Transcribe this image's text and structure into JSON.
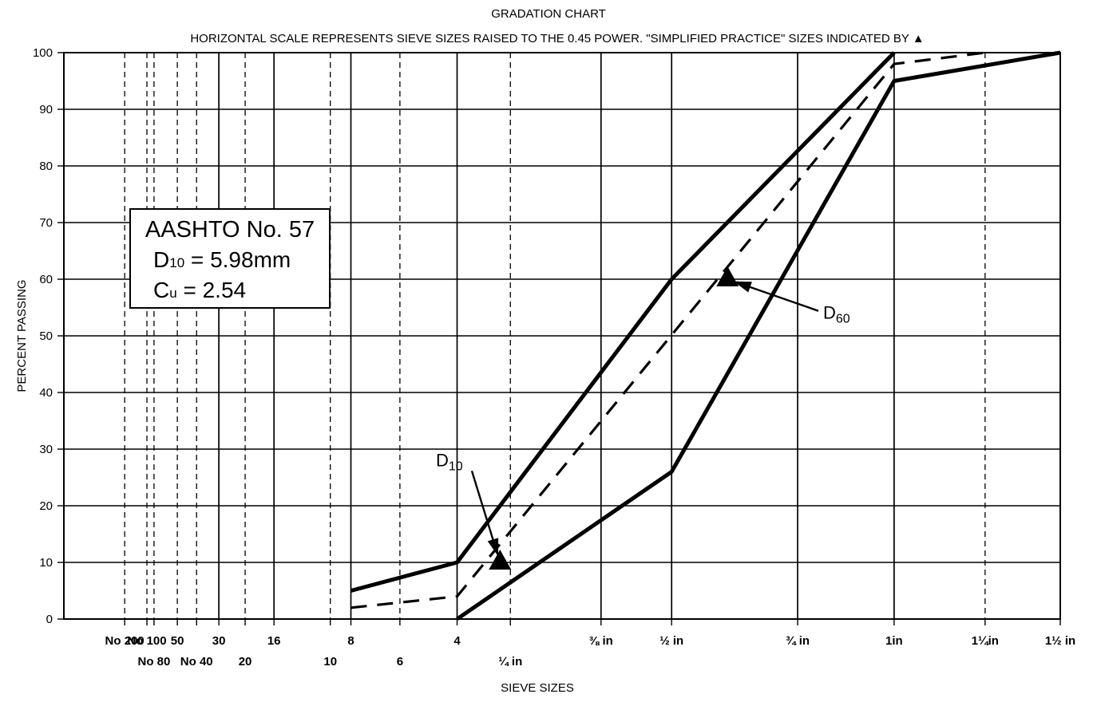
{
  "chart_data": {
    "type": "line",
    "title": "GRADATION CHART",
    "subtitle": "HORIZONTAL SCALE REPRESENTS SIEVE SIZES RAISED TO THE 0.45 POWER. \"SIMPLIFIED PRACTICE\" SIZES INDICATED BY ▲",
    "xlabel": "SIEVE SIZES",
    "ylabel": "PERCENT PASSING",
    "x_scale": "sieve opening (mm) raised to the 0.45 power",
    "ylim": [
      0,
      100
    ],
    "y_ticks": [
      0,
      10,
      20,
      30,
      40,
      50,
      60,
      70,
      80,
      90,
      100
    ],
    "grid": true,
    "sieves": [
      {
        "label": "No 200",
        "size_mm": 0.075,
        "row": 1,
        "line": "dashed"
      },
      {
        "label": "No 100",
        "size_mm": 0.15,
        "row": 1,
        "line": "dashed"
      },
      {
        "label": "No 80",
        "size_mm": 0.18,
        "row": 2,
        "line": "dashed"
      },
      {
        "label": "50",
        "size_mm": 0.3,
        "row": 1,
        "line": "dashed"
      },
      {
        "label": "No 40",
        "size_mm": 0.425,
        "row": 2,
        "line": "dashed"
      },
      {
        "label": "30",
        "size_mm": 0.6,
        "row": 1,
        "line": "solid"
      },
      {
        "label": "20",
        "size_mm": 0.85,
        "row": 2,
        "line": "dashed"
      },
      {
        "label": "16",
        "size_mm": 1.18,
        "row": 1,
        "line": "solid"
      },
      {
        "label": "10",
        "size_mm": 2.0,
        "row": 2,
        "line": "dashed"
      },
      {
        "label": "8",
        "size_mm": 2.36,
        "row": 1,
        "line": "solid"
      },
      {
        "label": "6",
        "size_mm": 3.35,
        "row": 2,
        "line": "dashed"
      },
      {
        "label": "4",
        "size_mm": 4.75,
        "row": 1,
        "line": "solid"
      },
      {
        "label": "¼ in",
        "size_mm": 6.3,
        "row": 2,
        "line": "dashed"
      },
      {
        "label": "⅜ in",
        "size_mm": 9.5,
        "row": 1,
        "line": "solid"
      },
      {
        "label": "½ in",
        "size_mm": 12.5,
        "row": 1,
        "line": "solid"
      },
      {
        "label": "¾ in",
        "size_mm": 19.0,
        "row": 1,
        "line": "solid"
      },
      {
        "label": "1in",
        "size_mm": 25.0,
        "row": 1,
        "line": "solid"
      },
      {
        "label": "1¼in",
        "size_mm": 31.5,
        "row": 1,
        "line": "dashed"
      },
      {
        "label": "1½ in",
        "size_mm": 37.5,
        "row": 1,
        "line": "solid"
      }
    ],
    "series": [
      {
        "style": "solid",
        "points": [
          [
            2.36,
            5
          ],
          [
            4.75,
            10
          ],
          [
            12.5,
            60
          ],
          [
            25.0,
            100
          ]
        ]
      },
      {
        "style": "solid",
        "points": [
          [
            4.75,
            0
          ],
          [
            12.5,
            26
          ],
          [
            25.0,
            95
          ],
          [
            37.5,
            100
          ]
        ]
      },
      {
        "style": "dashed",
        "points": [
          [
            2.36,
            2
          ],
          [
            4.75,
            4
          ],
          [
            25.0,
            98
          ],
          [
            31.5,
            100
          ]
        ]
      }
    ],
    "markers": [
      {
        "type": "triangle",
        "x": 5.98,
        "y": 10
      },
      {
        "type": "triangle",
        "x": 15.2,
        "y": 60
      }
    ],
    "annotations": [
      {
        "label_main": "D",
        "label_sub": "10",
        "x": 4.2,
        "y": 27,
        "arrow_to": [
          5.98,
          10
        ]
      },
      {
        "label_main": "D",
        "label_sub": "60",
        "x": 20.5,
        "y": 53,
        "arrow_to": [
          15.2,
          60
        ]
      }
    ],
    "info_box": {
      "line1": "AASHTO No. 57",
      "line2_main": "D",
      "line2_sub": "10",
      "line2_rest": " = 5.98mm",
      "line3_main": "C",
      "line3_sub": "u",
      "line3_rest": " = 2.54",
      "position": "left"
    }
  }
}
